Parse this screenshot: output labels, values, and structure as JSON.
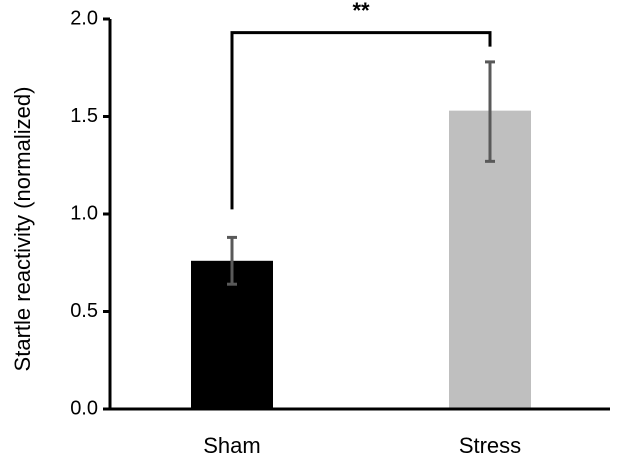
{
  "chart_data": {
    "type": "bar",
    "ylabel": "Startle reactivity (normalized)",
    "ylim": [
      0,
      2.0
    ],
    "yticks": [
      "0.0",
      "0.5",
      "1.0",
      "1.5",
      "2.0"
    ],
    "categories": [
      "Sham",
      "Stress"
    ],
    "values": [
      0.76,
      1.53
    ],
    "error_low": [
      0.64,
      1.27
    ],
    "error_high": [
      0.88,
      1.78
    ],
    "bar_colors": [
      "#000000",
      "#bfbfbf"
    ],
    "significance": {
      "label": "**",
      "from": "Sham",
      "to": "Stress",
      "level": 1.93
    },
    "grid": false,
    "legend": "none"
  }
}
